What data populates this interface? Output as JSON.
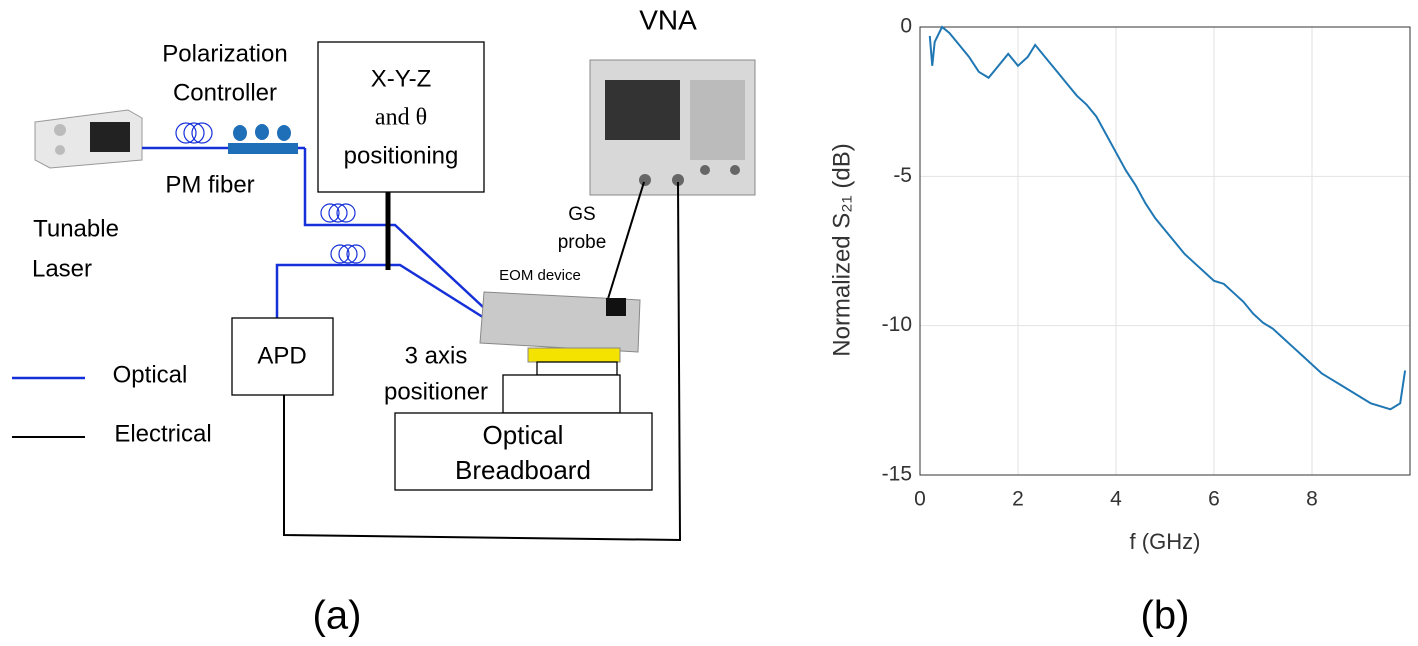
{
  "diagram": {
    "polarization": [
      "Polarization",
      "Controller"
    ],
    "pm_fiber": "PM fiber",
    "laser": [
      "Tunable",
      "Laser"
    ],
    "stage": [
      "X-Y-Z",
      "and θ",
      "positioning"
    ],
    "vna": "VNA",
    "gs_probe": [
      "GS",
      "probe"
    ],
    "eom": "EOM device",
    "positioner": [
      "3 axis",
      "positioner"
    ],
    "apd": "APD",
    "breadboard": [
      "Optical",
      "Breadboard"
    ],
    "legend": [
      "Optical",
      "Electrical"
    ],
    "panel_label": "(a)"
  },
  "chart_data": {
    "type": "line",
    "panel_label": "(b)",
    "x_label": "f (GHz)",
    "y_label": "Normalized S₂₁ (dB)",
    "xlim": [
      0,
      10
    ],
    "ylim": [
      -15,
      0
    ],
    "xticks": [
      0,
      2,
      4,
      6,
      8
    ],
    "yticks": [
      -15,
      -10,
      -5,
      0
    ],
    "grid": true,
    "series": [
      {
        "color": "#1f77b4",
        "x": [
          0.2,
          0.25,
          0.3,
          0.45,
          0.6,
          0.8,
          1.0,
          1.2,
          1.4,
          1.6,
          1.8,
          2.0,
          2.2,
          2.35,
          2.6,
          2.8,
          3.0,
          3.2,
          3.4,
          3.6,
          3.8,
          4.0,
          4.2,
          4.4,
          4.6,
          4.8,
          5.0,
          5.2,
          5.4,
          5.6,
          5.8,
          6.0,
          6.2,
          6.4,
          6.6,
          6.8,
          7.0,
          7.2,
          7.4,
          7.6,
          7.8,
          8.0,
          8.2,
          8.4,
          8.6,
          8.8,
          9.0,
          9.2,
          9.4,
          9.6,
          9.8,
          9.9
        ],
        "values": [
          -0.3,
          -1.3,
          -0.5,
          0,
          -0.2,
          -0.6,
          -1.0,
          -1.5,
          -1.7,
          -1.3,
          -0.9,
          -1.3,
          -1.0,
          -0.6,
          -1.1,
          -1.5,
          -1.9,
          -2.3,
          -2.6,
          -3.0,
          -3.6,
          -4.2,
          -4.8,
          -5.3,
          -5.9,
          -6.4,
          -6.8,
          -7.2,
          -7.6,
          -7.9,
          -8.2,
          -8.5,
          -8.6,
          -8.9,
          -9.2,
          -9.6,
          -9.9,
          -10.1,
          -10.4,
          -10.7,
          -11.0,
          -11.3,
          -11.6,
          -11.8,
          -12.0,
          -12.2,
          -12.4,
          -12.6,
          -12.7,
          -12.8,
          -12.6,
          -11.5
        ]
      }
    ]
  }
}
